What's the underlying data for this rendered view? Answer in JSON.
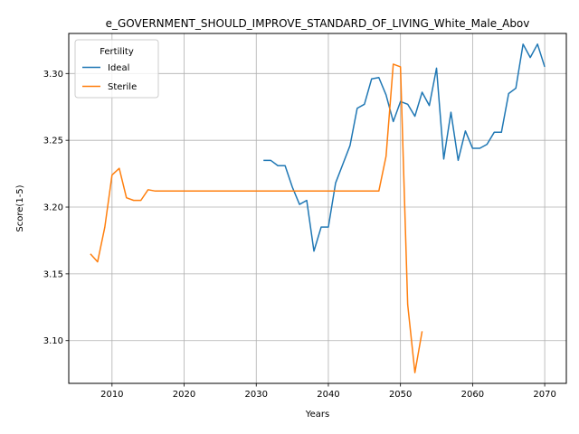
{
  "chart_data": {
    "type": "line",
    "title": "e_GOVERNMENT_SHOULD_IMPROVE_STANDARD_OF_LIVING_White_Male_Abov",
    "xlabel": "Years",
    "ylabel": "Score(1-5)",
    "xlim": [
      2004,
      2073
    ],
    "ylim": [
      3.068,
      3.33
    ],
    "xticks": [
      2010,
      2020,
      2030,
      2040,
      2050,
      2060,
      2070
    ],
    "yticks": [
      3.1,
      3.15,
      3.2,
      3.25,
      3.3
    ],
    "ytick_labels": [
      "3.10",
      "3.15",
      "3.20",
      "3.25",
      "3.30"
    ],
    "grid": true,
    "legend": {
      "title": "Fertility",
      "position": "top-left"
    },
    "series": [
      {
        "name": "Ideal",
        "color": "#1f77b4",
        "x": [
          2031,
          2032,
          2033,
          2034,
          2035,
          2036,
          2037,
          2038,
          2039,
          2040,
          2041,
          2042,
          2043,
          2044,
          2045,
          2046,
          2047,
          2048,
          2049,
          2050,
          2051,
          2052,
          2053,
          2054,
          2055,
          2056,
          2057,
          2058,
          2059,
          2060,
          2061,
          2062,
          2063,
          2064,
          2065,
          2066,
          2067,
          2068,
          2069,
          2070
        ],
        "y": [
          3.235,
          3.235,
          3.231,
          3.231,
          3.215,
          3.202,
          3.205,
          3.167,
          3.185,
          3.185,
          3.218,
          3.232,
          3.246,
          3.274,
          3.277,
          3.296,
          3.297,
          3.284,
          3.264,
          3.279,
          3.277,
          3.268,
          3.286,
          3.276,
          3.304,
          3.236,
          3.271,
          3.235,
          3.257,
          3.244,
          3.244,
          3.247,
          3.256,
          3.256,
          3.285,
          3.289,
          3.322,
          3.312,
          3.322,
          3.305
        ]
      },
      {
        "name": "Sterile",
        "color": "#ff7f0e",
        "x": [
          2007,
          2008,
          2009,
          2010,
          2011,
          2012,
          2013,
          2014,
          2015,
          2016,
          2017,
          2018,
          2019,
          2020,
          2021,
          2022,
          2023,
          2024,
          2025,
          2026,
          2027,
          2028,
          2029,
          2030,
          2031,
          2032,
          2033,
          2034,
          2035,
          2036,
          2037,
          2038,
          2039,
          2040,
          2041,
          2042,
          2043,
          2044,
          2045,
          2046,
          2047,
          2048,
          2049,
          2050,
          2051,
          2052,
          2053
        ],
        "y": [
          3.165,
          3.159,
          3.185,
          3.224,
          3.229,
          3.207,
          3.205,
          3.205,
          3.213,
          3.212,
          3.212,
          3.212,
          3.212,
          3.212,
          3.212,
          3.212,
          3.212,
          3.212,
          3.212,
          3.212,
          3.212,
          3.212,
          3.212,
          3.212,
          3.212,
          3.212,
          3.212,
          3.212,
          3.212,
          3.212,
          3.212,
          3.212,
          3.212,
          3.212,
          3.212,
          3.212,
          3.212,
          3.212,
          3.212,
          3.212,
          3.212,
          3.238,
          3.307,
          3.305,
          3.127,
          3.076,
          3.107
        ]
      }
    ]
  }
}
